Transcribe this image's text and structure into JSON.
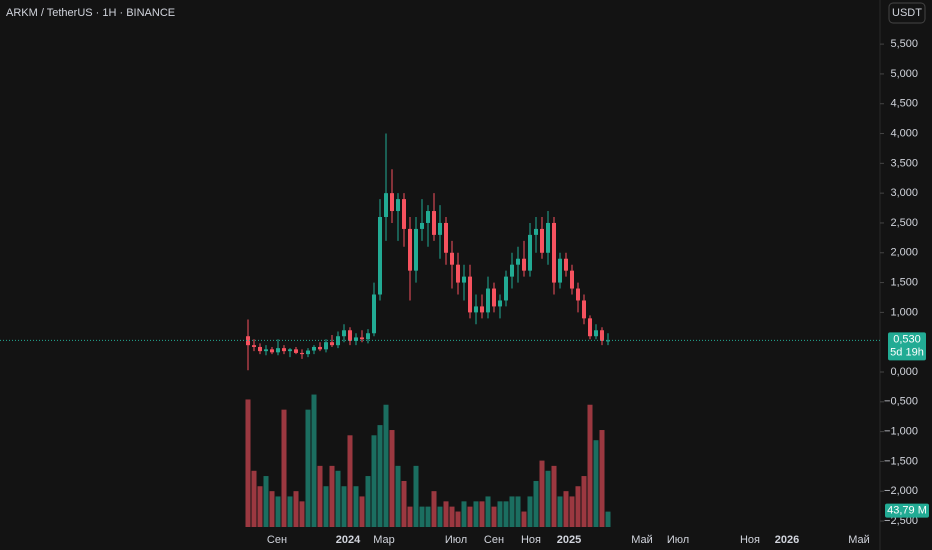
{
  "chart_data": {
    "type": "candlestick",
    "title": "ARKM / TetherUS · 1H · BINANCE",
    "currency_button": "USDT",
    "up_color": "#22ab94",
    "down_color": "#f7525f",
    "ylim": [
      -2.6,
      6.24
    ],
    "yticks": [
      {
        "value": 5.5,
        "label": "5,500"
      },
      {
        "value": 5,
        "label": "5,000"
      },
      {
        "value": 4.5,
        "label": "4,500"
      },
      {
        "value": 4,
        "label": "4,000"
      },
      {
        "value": 3.5,
        "label": "3,500"
      },
      {
        "value": 3,
        "label": "3,000"
      },
      {
        "value": 2.5,
        "label": "2,500"
      },
      {
        "value": 2,
        "label": "2,000"
      },
      {
        "value": 1.5,
        "label": "1,500"
      },
      {
        "value": 1,
        "label": "1,000"
      },
      {
        "value": 0,
        "label": "0,000"
      },
      {
        "value": -0.5,
        "label": "−0,500"
      },
      {
        "value": -1,
        "label": "−1,000"
      },
      {
        "value": -1.5,
        "label": "−1,500"
      },
      {
        "value": -2,
        "label": "−2,000"
      },
      {
        "value": -2.5,
        "label": "−2,500"
      }
    ],
    "time_labels": [
      "Сен",
      "2024",
      "Мар",
      "Июл",
      "Сен",
      "Ноя",
      "2025",
      "Май",
      "Июл",
      "Ноя",
      "2026",
      "Май"
    ],
    "ohlc": [
      [
        0.6,
        0.88,
        0.03,
        0.45
      ],
      [
        0.45,
        0.55,
        0.35,
        0.42
      ],
      [
        0.42,
        0.48,
        0.3,
        0.35
      ],
      [
        0.35,
        0.45,
        0.28,
        0.38
      ],
      [
        0.38,
        0.42,
        0.3,
        0.33
      ],
      [
        0.33,
        0.55,
        0.28,
        0.4
      ],
      [
        0.4,
        0.45,
        0.3,
        0.35
      ],
      [
        0.35,
        0.4,
        0.25,
        0.38
      ],
      [
        0.38,
        0.42,
        0.3,
        0.32
      ],
      [
        0.32,
        0.38,
        0.22,
        0.3
      ],
      [
        0.3,
        0.4,
        0.25,
        0.36
      ],
      [
        0.36,
        0.45,
        0.3,
        0.42
      ],
      [
        0.42,
        0.5,
        0.35,
        0.38
      ],
      [
        0.38,
        0.55,
        0.33,
        0.5
      ],
      [
        0.5,
        0.62,
        0.42,
        0.45
      ],
      [
        0.45,
        0.68,
        0.4,
        0.6
      ],
      [
        0.6,
        0.8,
        0.5,
        0.7
      ],
      [
        0.7,
        0.75,
        0.45,
        0.52
      ],
      [
        0.52,
        0.65,
        0.45,
        0.58
      ],
      [
        0.58,
        0.7,
        0.5,
        0.55
      ],
      [
        0.55,
        0.72,
        0.48,
        0.65
      ],
      [
        0.65,
        1.5,
        0.6,
        1.3
      ],
      [
        1.3,
        2.9,
        1.2,
        2.6
      ],
      [
        2.6,
        4.0,
        2.2,
        3.0
      ],
      [
        3.0,
        3.4,
        2.5,
        2.7
      ],
      [
        2.7,
        3.0,
        2.2,
        2.9
      ],
      [
        2.9,
        3.0,
        2.1,
        2.4
      ],
      [
        2.4,
        2.6,
        1.2,
        1.7
      ],
      [
        1.7,
        2.6,
        1.5,
        2.4
      ],
      [
        2.4,
        2.9,
        2.2,
        2.5
      ],
      [
        2.5,
        2.8,
        2.1,
        2.7
      ],
      [
        2.7,
        3.0,
        2.2,
        2.3
      ],
      [
        2.3,
        2.8,
        1.9,
        2.5
      ],
      [
        2.5,
        2.6,
        1.8,
        2.0
      ],
      [
        2.0,
        2.2,
        1.4,
        1.8
      ],
      [
        1.8,
        2.0,
        1.3,
        1.5
      ],
      [
        1.5,
        1.8,
        1.2,
        1.6
      ],
      [
        1.6,
        1.8,
        0.9,
        1.0
      ],
      [
        1.0,
        1.3,
        0.8,
        1.1
      ],
      [
        1.1,
        1.3,
        0.9,
        1.0
      ],
      [
        1.0,
        1.6,
        0.9,
        1.4
      ],
      [
        1.4,
        1.5,
        1.0,
        1.1
      ],
      [
        1.1,
        1.3,
        0.9,
        1.2
      ],
      [
        1.2,
        1.7,
        1.1,
        1.6
      ],
      [
        1.6,
        2.0,
        1.4,
        1.8
      ],
      [
        1.8,
        2.1,
        1.5,
        1.9
      ],
      [
        1.9,
        2.2,
        1.6,
        1.7
      ],
      [
        1.7,
        2.5,
        1.6,
        2.3
      ],
      [
        2.3,
        2.6,
        2.0,
        2.4
      ],
      [
        2.4,
        2.6,
        1.9,
        2.0
      ],
      [
        2.0,
        2.7,
        1.8,
        2.5
      ],
      [
        2.5,
        2.6,
        1.3,
        1.5
      ],
      [
        1.5,
        2.0,
        1.4,
        1.9
      ],
      [
        1.9,
        2.0,
        1.6,
        1.7
      ],
      [
        1.7,
        1.8,
        1.3,
        1.4
      ],
      [
        1.4,
        1.5,
        1.0,
        1.2
      ],
      [
        1.2,
        1.3,
        0.8,
        0.9
      ],
      [
        0.9,
        0.95,
        0.55,
        0.6
      ],
      [
        0.6,
        0.8,
        0.55,
        0.7
      ],
      [
        0.7,
        0.75,
        0.45,
        0.52
      ],
      [
        0.52,
        0.65,
        0.45,
        0.53
      ]
    ],
    "volume": [
      363,
      160,
      116,
      145,
      102,
      87,
      334,
      87,
      102,
      73,
      334,
      377,
      174,
      116,
      174,
      160,
      116,
      261,
      116,
      87,
      145,
      261,
      290,
      348,
      276,
      174,
      131,
      58,
      174,
      58,
      58,
      102,
      58,
      73,
      58,
      44,
      73,
      58,
      73,
      73,
      87,
      58,
      73,
      73,
      87,
      87,
      44,
      87,
      131,
      189,
      160,
      174,
      87,
      102,
      87,
      116,
      145,
      348,
      247,
      276,
      43.79
    ],
    "volume_ylim": [
      0,
      370
    ],
    "last_price": {
      "value": 0.53,
      "label": "0,530"
    },
    "countdown": "5d 19h",
    "last_volume": {
      "value": 43.79,
      "label": "43,79 M"
    }
  }
}
